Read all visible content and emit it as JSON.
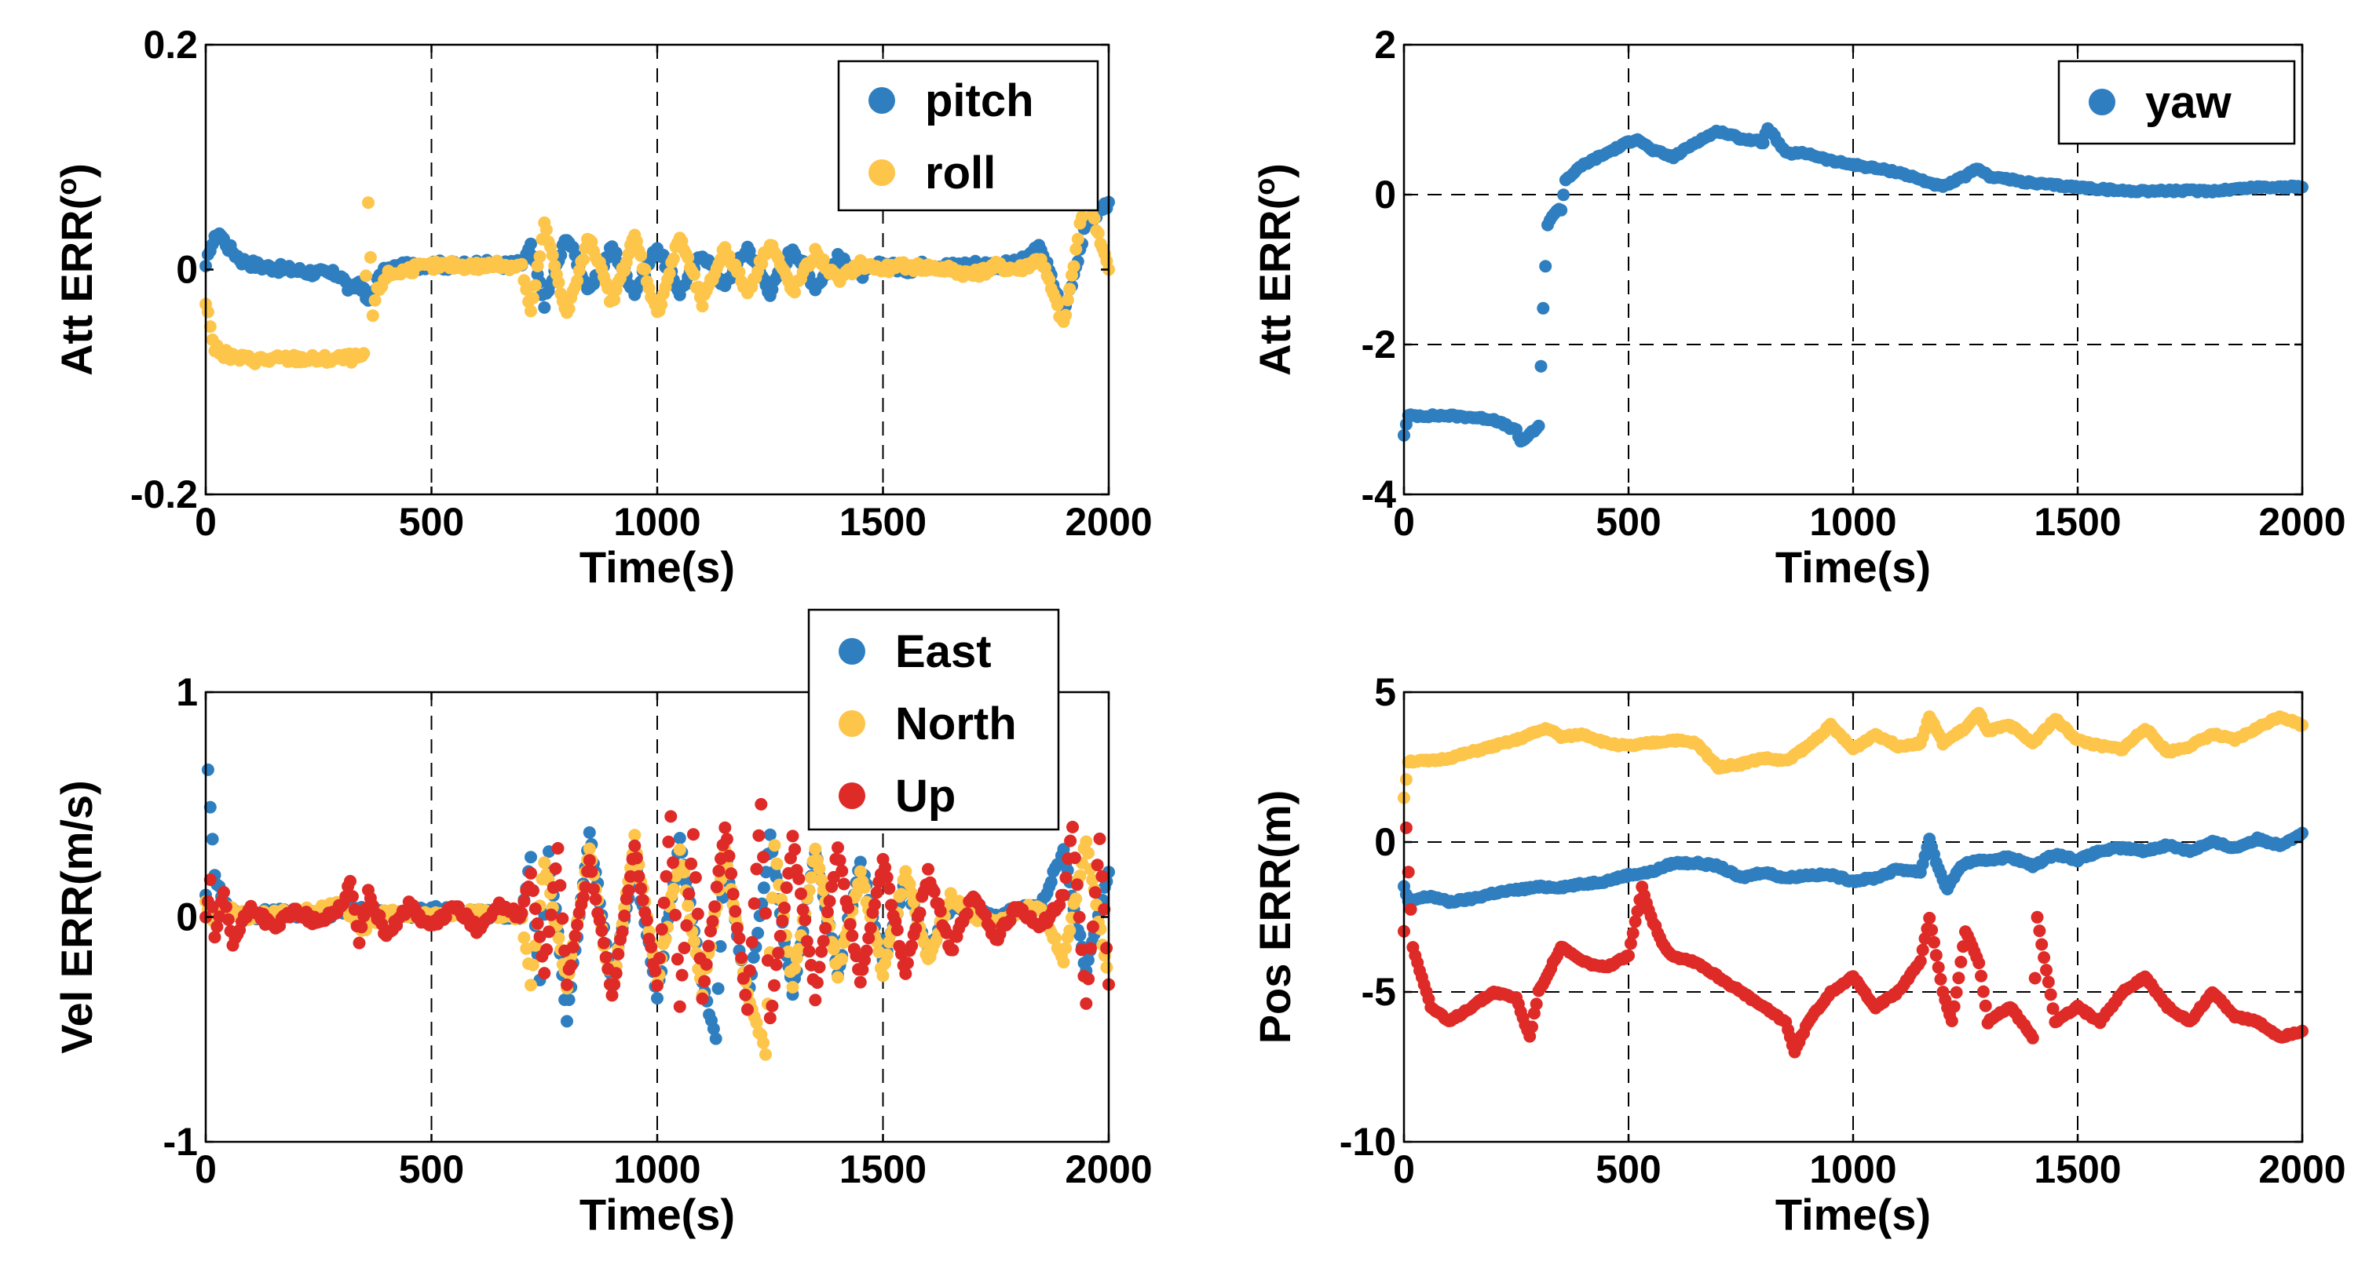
{
  "colors": {
    "blue": "#2f7fc0",
    "yellow": "#fdc54a",
    "red": "#de2b27"
  },
  "chart_data": [
    {
      "type": "scatter",
      "id": "att-pitch-roll",
      "title": "",
      "xlabel": "Time(s)",
      "ylabel": "Att ERR(°)",
      "ylabel_main": "Att ERR(",
      "ylabel_sup": "o",
      "ylabel_end": ")",
      "xlim": [
        0,
        2000
      ],
      "ylim": [
        -0.2,
        0.2
      ],
      "xticks": [
        0,
        500,
        1000,
        1500,
        2000
      ],
      "xtick_labels": [
        "0",
        "500",
        "1000",
        "1500",
        "2000"
      ],
      "yticks": [
        -0.2,
        0,
        0.2
      ],
      "ytick_labels": [
        "-0.2",
        "0",
        "0.2"
      ],
      "grid": "dashed vertical",
      "legend_position": "top-right",
      "series": [
        {
          "name": "pitch",
          "color": "blue",
          "x": [
            0,
            10,
            30,
            50,
            80,
            120,
            180,
            250,
            300,
            320,
            340,
            360,
            380,
            400,
            450,
            500,
            550,
            600,
            650,
            700,
            720,
            750,
            800,
            850,
            900,
            950,
            1000,
            1050,
            1100,
            1150,
            1200,
            1250,
            1300,
            1350,
            1400,
            1450,
            1500,
            1550,
            1600,
            1650,
            1700,
            1750,
            1800,
            1850,
            1900,
            1950,
            2000
          ],
          "y": [
            0.0,
            0.02,
            0.033,
            0.02,
            0.008,
            0.003,
            0.0,
            -0.003,
            -0.005,
            -0.02,
            -0.01,
            -0.03,
            -0.01,
            0.0,
            0.003,
            0.005,
            0.003,
            0.005,
            0.004,
            0.005,
            0.02,
            -0.03,
            0.03,
            -0.02,
            0.02,
            -0.02,
            0.02,
            -0.02,
            0.015,
            -0.015,
            0.02,
            -0.02,
            0.02,
            -0.015,
            0.01,
            -0.005,
            0.005,
            0.0,
            0.005,
            0.003,
            0.005,
            0.004,
            0.005,
            0.02,
            -0.04,
            0.04,
            0.06
          ]
        },
        {
          "name": "roll",
          "color": "yellow",
          "x": [
            0,
            10,
            20,
            40,
            60,
            100,
            150,
            200,
            250,
            300,
            350,
            360,
            370,
            380,
            400,
            450,
            500,
            550,
            600,
            650,
            700,
            720,
            750,
            800,
            850,
            900,
            950,
            1000,
            1050,
            1100,
            1150,
            1200,
            1250,
            1300,
            1350,
            1400,
            1450,
            1500,
            1550,
            1600,
            1650,
            1700,
            1750,
            1800,
            1850,
            1900,
            1950,
            2000
          ],
          "y": [
            -0.03,
            -0.05,
            -0.07,
            -0.075,
            -0.078,
            -0.08,
            -0.08,
            -0.079,
            -0.08,
            -0.079,
            -0.078,
            0.06,
            -0.04,
            -0.02,
            -0.005,
            0.0,
            0.003,
            0.004,
            0.003,
            0.004,
            0.003,
            -0.04,
            0.04,
            -0.04,
            0.03,
            -0.03,
            0.03,
            -0.04,
            0.03,
            -0.03,
            0.02,
            -0.02,
            0.025,
            -0.02,
            0.015,
            -0.01,
            0.005,
            0.0,
            0.003,
            0.002,
            0.0,
            -0.005,
            0.003,
            0.0,
            0.01,
            -0.05,
            0.07,
            0.0
          ]
        }
      ]
    },
    {
      "type": "scatter",
      "id": "att-yaw",
      "title": "",
      "xlabel": "Time(s)",
      "ylabel": "Att ERR(°)",
      "ylabel_main": "Att ERR(",
      "ylabel_sup": "o",
      "ylabel_end": ")",
      "xlim": [
        0,
        2000
      ],
      "ylim": [
        -4,
        2
      ],
      "xticks": [
        0,
        500,
        1000,
        1500,
        2000
      ],
      "xtick_labels": [
        "0",
        "500",
        "1000",
        "1500",
        "2000"
      ],
      "yticks": [
        -4,
        -2,
        0,
        2
      ],
      "ytick_labels": [
        "-4",
        "-2",
        "0",
        "2"
      ],
      "grid": "dashed both",
      "legend_position": "top-right",
      "series": [
        {
          "name": "yaw",
          "color": "blue",
          "x": [
            0,
            10,
            50,
            100,
            150,
            200,
            250,
            260,
            280,
            300,
            310,
            320,
            330,
            340,
            350,
            360,
            380,
            400,
            450,
            500,
            520,
            550,
            600,
            650,
            700,
            750,
            800,
            810,
            850,
            900,
            950,
            1000,
            1050,
            1100,
            1150,
            1200,
            1250,
            1280,
            1300,
            1350,
            1400,
            1500,
            1600,
            1700,
            1800,
            1900,
            2000
          ],
          "y": [
            -3.2,
            -2.95,
            -2.95,
            -2.95,
            -2.97,
            -3.0,
            -3.15,
            -3.3,
            -3.2,
            -3.1,
            -1.5,
            -0.4,
            -0.3,
            -0.2,
            -0.2,
            0.2,
            0.3,
            0.4,
            0.55,
            0.7,
            0.75,
            0.6,
            0.5,
            0.7,
            0.85,
            0.75,
            0.7,
            0.9,
            0.55,
            0.55,
            0.45,
            0.4,
            0.35,
            0.3,
            0.2,
            0.1,
            0.25,
            0.35,
            0.25,
            0.2,
            0.15,
            0.1,
            0.05,
            0.05,
            0.05,
            0.1,
            0.1
          ]
        }
      ]
    },
    {
      "type": "scatter",
      "id": "vel",
      "title": "",
      "xlabel": "Time(s)",
      "ylabel": "Vel ERR(m/s)",
      "xlim": [
        0,
        2000
      ],
      "ylim": [
        -1,
        1
      ],
      "xticks": [
        0,
        500,
        1000,
        1500,
        2000
      ],
      "xtick_labels": [
        "0",
        "500",
        "1000",
        "1500",
        "2000"
      ],
      "yticks": [
        -1,
        0,
        1
      ],
      "ytick_labels": [
        "-1",
        "0",
        "1"
      ],
      "grid": "dashed vertical",
      "legend_position": "top-center",
      "series": [
        {
          "name": "East",
          "color": "blue",
          "x": [
            0,
            5,
            10,
            20,
            40,
            80,
            150,
            250,
            300,
            350,
            400,
            500,
            600,
            700,
            720,
            740,
            760,
            800,
            850,
            900,
            950,
            1000,
            1050,
            1100,
            1130,
            1150,
            1200,
            1250,
            1300,
            1350,
            1400,
            1450,
            1500,
            1550,
            1600,
            1650,
            1700,
            1750,
            1800,
            1850,
            1900,
            1950,
            2000
          ],
          "y": [
            0.1,
            0.65,
            0.5,
            0.2,
            0.05,
            0.0,
            0.02,
            0.0,
            0.03,
            0.05,
            0.0,
            0.03,
            0.02,
            0.0,
            0.25,
            -0.3,
            0.3,
            -0.45,
            0.38,
            -0.3,
            0.25,
            -0.35,
            0.35,
            -0.3,
            -0.55,
            0.3,
            -0.4,
            0.35,
            -0.35,
            0.3,
            -0.25,
            0.25,
            -0.2,
            0.15,
            -0.15,
            0.05,
            0.02,
            0.0,
            0.03,
            0.05,
            0.3,
            -0.25,
            0.2
          ]
        },
        {
          "name": "North",
          "color": "yellow",
          "x": [
            0,
            20,
            50,
            100,
            200,
            300,
            350,
            400,
            500,
            600,
            700,
            720,
            750,
            800,
            850,
            900,
            950,
            1000,
            1050,
            1100,
            1150,
            1200,
            1240,
            1260,
            1300,
            1350,
            1400,
            1450,
            1500,
            1550,
            1600,
            1650,
            1700,
            1750,
            1800,
            1850,
            1900,
            1950,
            2000
          ],
          "y": [
            0.05,
            -0.02,
            0.03,
            0.0,
            0.02,
            0.05,
            -0.05,
            0.03,
            0.0,
            0.02,
            0.0,
            -0.3,
            0.25,
            -0.3,
            0.3,
            -0.35,
            0.35,
            -0.3,
            0.3,
            -0.35,
            0.3,
            -0.35,
            -0.6,
            0.3,
            -0.3,
            0.3,
            -0.25,
            0.2,
            -0.25,
            0.2,
            -0.2,
            0.1,
            0.0,
            -0.02,
            0.02,
            0.05,
            -0.2,
            0.35,
            -0.3
          ]
        },
        {
          "name": "Up",
          "color": "red",
          "x": [
            0,
            10,
            20,
            40,
            60,
            100,
            150,
            200,
            250,
            300,
            320,
            340,
            360,
            400,
            450,
            500,
            550,
            600,
            650,
            700,
            720,
            750,
            780,
            800,
            850,
            900,
            950,
            1000,
            1030,
            1050,
            1080,
            1100,
            1150,
            1200,
            1230,
            1250,
            1300,
            1350,
            1400,
            1450,
            1500,
            1550,
            1600,
            1650,
            1700,
            1750,
            1800,
            1850,
            1900,
            1920,
            1950,
            1980,
            2000
          ],
          "y": [
            0.0,
            0.15,
            -0.1,
            0.1,
            -0.12,
            0.05,
            -0.05,
            0.03,
            -0.03,
            0.05,
            0.15,
            -0.1,
            0.1,
            -0.08,
            0.05,
            -0.05,
            0.05,
            -0.05,
            0.05,
            0.0,
            0.2,
            -0.25,
            0.3,
            -0.3,
            0.25,
            -0.35,
            0.3,
            -0.3,
            0.45,
            -0.4,
            0.35,
            -0.35,
            0.4,
            -0.4,
            0.5,
            -0.45,
            0.35,
            -0.35,
            0.3,
            -0.3,
            0.25,
            -0.25,
            0.2,
            -0.15,
            0.1,
            -0.1,
            0.05,
            -0.05,
            0.1,
            0.4,
            -0.4,
            0.35,
            -0.3
          ]
        }
      ]
    },
    {
      "type": "scatter",
      "id": "pos",
      "title": "",
      "xlabel": "Time(s)",
      "ylabel": "Pos ERR(m)",
      "xlim": [
        0,
        2000
      ],
      "ylim": [
        -10,
        5
      ],
      "xticks": [
        0,
        500,
        1000,
        1500,
        2000
      ],
      "xtick_labels": [
        "0",
        "500",
        "1000",
        "1500",
        "2000"
      ],
      "yticks": [
        -10,
        -5,
        0,
        5
      ],
      "ytick_labels": [
        "-10",
        "-5",
        "0",
        "5"
      ],
      "grid": "dashed both",
      "legend_position": "none",
      "series": [
        {
          "name": "East",
          "color": "blue",
          "x": [
            0,
            10,
            30,
            60,
            100,
            150,
            200,
            250,
            300,
            350,
            400,
            450,
            500,
            550,
            600,
            650,
            700,
            750,
            800,
            850,
            900,
            950,
            1000,
            1050,
            1100,
            1150,
            1170,
            1190,
            1210,
            1230,
            1250,
            1300,
            1350,
            1400,
            1450,
            1500,
            1550,
            1600,
            1650,
            1700,
            1750,
            1800,
            1850,
            1900,
            1950,
            2000
          ],
          "y": [
            -1.5,
            -2.0,
            -1.9,
            -1.8,
            -2.0,
            -1.9,
            -1.7,
            -1.6,
            -1.5,
            -1.5,
            -1.4,
            -1.3,
            -1.1,
            -1.0,
            -0.7,
            -0.7,
            -0.8,
            -1.2,
            -1.0,
            -1.2,
            -1.1,
            -1.1,
            -1.3,
            -1.2,
            -0.9,
            -1.0,
            0.1,
            -0.9,
            -1.6,
            -1.0,
            -0.7,
            -0.6,
            -0.5,
            -0.8,
            -0.4,
            -0.6,
            -0.3,
            -0.2,
            -0.3,
            -0.1,
            -0.3,
            0.0,
            -0.2,
            0.1,
            -0.1,
            0.3
          ]
        },
        {
          "name": "North",
          "color": "yellow",
          "x": [
            0,
            10,
            30,
            60,
            100,
            150,
            200,
            250,
            300,
            320,
            350,
            400,
            450,
            500,
            550,
            600,
            650,
            700,
            750,
            800,
            850,
            900,
            950,
            1000,
            1050,
            1100,
            1150,
            1170,
            1200,
            1250,
            1280,
            1300,
            1350,
            1400,
            1450,
            1500,
            1550,
            1600,
            1650,
            1700,
            1750,
            1800,
            1850,
            1900,
            1950,
            2000
          ],
          "y": [
            1.5,
            2.7,
            2.7,
            2.7,
            2.8,
            3.0,
            3.2,
            3.4,
            3.7,
            3.8,
            3.5,
            3.6,
            3.3,
            3.2,
            3.3,
            3.4,
            3.3,
            2.5,
            2.6,
            2.8,
            2.7,
            3.2,
            3.9,
            3.1,
            3.6,
            3.2,
            3.3,
            4.2,
            3.3,
            3.8,
            4.3,
            3.7,
            3.9,
            3.3,
            4.1,
            3.4,
            3.2,
            3.1,
            3.8,
            3.0,
            3.2,
            3.6,
            3.4,
            3.8,
            4.2,
            3.9
          ]
        },
        {
          "name": "Up",
          "color": "red",
          "x": [
            0,
            5,
            10,
            20,
            40,
            60,
            100,
            150,
            200,
            250,
            280,
            300,
            350,
            400,
            450,
            500,
            530,
            550,
            580,
            600,
            650,
            700,
            750,
            800,
            850,
            870,
            900,
            950,
            1000,
            1050,
            1100,
            1150,
            1170,
            1200,
            1220,
            1250,
            1280,
            1300,
            1350,
            1400,
            1410,
            1450,
            1500,
            1550,
            1600,
            1650,
            1700,
            1750,
            1800,
            1850,
            1900,
            1950,
            2000
          ],
          "y": [
            -3.0,
            0.5,
            -1.0,
            -3.5,
            -4.5,
            -5.5,
            -6.0,
            -5.5,
            -5.0,
            -5.2,
            -6.5,
            -5.0,
            -3.5,
            -4.0,
            -4.2,
            -3.8,
            -1.5,
            -2.5,
            -3.5,
            -3.8,
            -4.0,
            -4.5,
            -5.0,
            -5.5,
            -6.0,
            -7.0,
            -6.0,
            -5.0,
            -4.5,
            -5.5,
            -5.0,
            -4.0,
            -2.5,
            -5.0,
            -6.0,
            -3.0,
            -4.0,
            -6.0,
            -5.5,
            -6.5,
            -2.5,
            -6.0,
            -5.5,
            -6.0,
            -5.0,
            -4.5,
            -5.5,
            -6.0,
            -5.0,
            -5.8,
            -6.0,
            -6.5,
            -6.3
          ]
        }
      ]
    }
  ]
}
